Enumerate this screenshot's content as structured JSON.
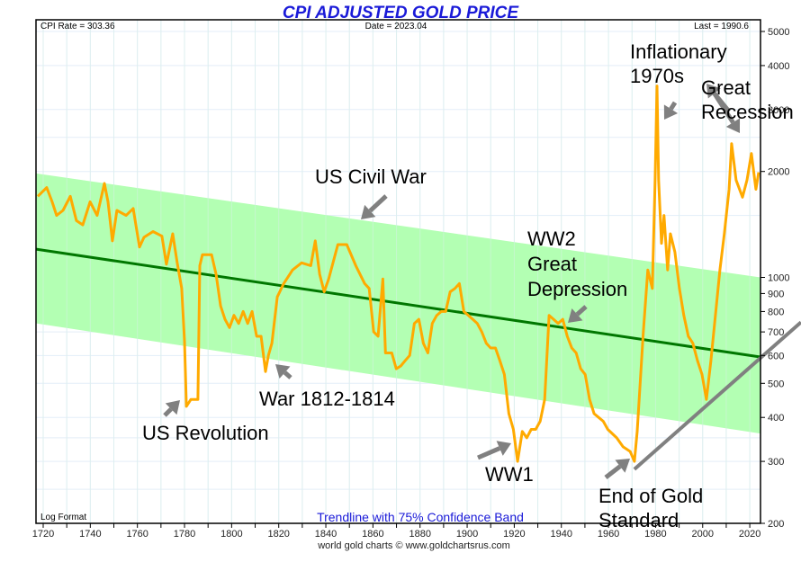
{
  "chart_data": {
    "type": "line",
    "title": "CPI ADJUSTED GOLD PRICE",
    "header": {
      "cpi_rate": "CPI Rate = 303.36",
      "date": "Date = 2023.04",
      "last": "Last = 1990.6"
    },
    "scale_label": "Log Format",
    "band_label": "Trendline with 75% Confidence Band",
    "credit": "world gold charts © www.goldchartsrus.com",
    "xlabel": "",
    "ylabel": "",
    "xlim": [
      1717,
      2024.5
    ],
    "ylim": [
      200,
      5600
    ],
    "yscale": "log",
    "grid": true,
    "x_ticks": [
      "1720",
      "1740",
      "1760",
      "1780",
      "1800",
      "1820",
      "1840",
      "1860",
      "1880",
      "1900",
      "1920",
      "1940",
      "1960",
      "1980",
      "2000",
      "2020"
    ],
    "y_ticks": [
      "200",
      "300",
      "400",
      "500",
      "600",
      "700",
      "800",
      "900",
      "1000",
      "2000",
      "3000",
      "4000",
      "5000"
    ],
    "colors": {
      "price": "#ffaa00",
      "trend": "#007700",
      "band": "#b3ffb3",
      "support": "#808080",
      "arrow": "#808080",
      "title": "#1a1ad8",
      "grid": "#e3eef8"
    },
    "series": [
      {
        "name": "CPI adjusted gold price",
        "points": [
          [
            1717.7,
            1700
          ],
          [
            1721.5,
            1800
          ],
          [
            1723.8,
            1640
          ],
          [
            1725.7,
            1500
          ],
          [
            1728.4,
            1550
          ],
          [
            1731.5,
            1700
          ],
          [
            1734.1,
            1450
          ],
          [
            1736.8,
            1410
          ],
          [
            1739.9,
            1640
          ],
          [
            1742.9,
            1500
          ],
          [
            1746.0,
            1850
          ],
          [
            1747.5,
            1640
          ],
          [
            1749.4,
            1270
          ],
          [
            1751.3,
            1550
          ],
          [
            1755.2,
            1500
          ],
          [
            1758.2,
            1570
          ],
          [
            1760.9,
            1220
          ],
          [
            1762.8,
            1300
          ],
          [
            1766.6,
            1350
          ],
          [
            1770.4,
            1310
          ],
          [
            1772.3,
            1090
          ],
          [
            1775.0,
            1330
          ],
          [
            1776.9,
            1100
          ],
          [
            1778.8,
            930
          ],
          [
            1780.0,
            660
          ],
          [
            1780.8,
            430
          ],
          [
            1782.7,
            450
          ],
          [
            1785.7,
            450
          ],
          [
            1786.5,
            1080
          ],
          [
            1787.6,
            1160
          ],
          [
            1791.5,
            1160
          ],
          [
            1793.4,
            1020
          ],
          [
            1795.3,
            830
          ],
          [
            1797.2,
            760
          ],
          [
            1799.1,
            720
          ],
          [
            1801.0,
            780
          ],
          [
            1803.0,
            740
          ],
          [
            1804.9,
            800
          ],
          [
            1806.8,
            740
          ],
          [
            1808.7,
            800
          ],
          [
            1810.6,
            680
          ],
          [
            1812.5,
            680
          ],
          [
            1814.4,
            540
          ],
          [
            1815.6,
            600
          ],
          [
            1817.1,
            650
          ],
          [
            1819.4,
            880
          ],
          [
            1822.1,
            960
          ],
          [
            1825.9,
            1050
          ],
          [
            1829.7,
            1100
          ],
          [
            1833.6,
            1080
          ],
          [
            1835.5,
            1270
          ],
          [
            1837.4,
            1020
          ],
          [
            1839.3,
            910
          ],
          [
            1841.2,
            990
          ],
          [
            1845.1,
            1240
          ],
          [
            1848.9,
            1240
          ],
          [
            1852.7,
            1080
          ],
          [
            1856.5,
            960
          ],
          [
            1858.4,
            930
          ],
          [
            1860.3,
            700
          ],
          [
            1862.2,
            680
          ],
          [
            1864.2,
            990
          ],
          [
            1865.3,
            610
          ],
          [
            1868.0,
            610
          ],
          [
            1869.9,
            550
          ],
          [
            1871.8,
            560
          ],
          [
            1873.7,
            580
          ],
          [
            1875.6,
            600
          ],
          [
            1877.6,
            740
          ],
          [
            1879.5,
            760
          ],
          [
            1881.4,
            650
          ],
          [
            1883.3,
            610
          ],
          [
            1885.2,
            740
          ],
          [
            1887.1,
            780
          ],
          [
            1889.0,
            800
          ],
          [
            1890.9,
            800
          ],
          [
            1892.8,
            910
          ],
          [
            1894.8,
            930
          ],
          [
            1896.7,
            960
          ],
          [
            1898.6,
            800
          ],
          [
            1900.5,
            780
          ],
          [
            1902.4,
            760
          ],
          [
            1904.3,
            740
          ],
          [
            1906.2,
            700
          ],
          [
            1908.1,
            650
          ],
          [
            1910.0,
            630
          ],
          [
            1912.0,
            630
          ],
          [
            1913.9,
            580
          ],
          [
            1915.8,
            530
          ],
          [
            1917.7,
            410
          ],
          [
            1919.6,
            370
          ],
          [
            1921.4,
            300
          ],
          [
            1923.4,
            365
          ],
          [
            1925.3,
            350
          ],
          [
            1927.2,
            370
          ],
          [
            1929.1,
            370
          ],
          [
            1931.0,
            390
          ],
          [
            1932.9,
            450
          ],
          [
            1934.8,
            780
          ],
          [
            1936.7,
            760
          ],
          [
            1938.6,
            740
          ],
          [
            1940.6,
            760
          ],
          [
            1942.5,
            680
          ],
          [
            1944.4,
            630
          ],
          [
            1946.3,
            610
          ],
          [
            1948.2,
            550
          ],
          [
            1950.1,
            530
          ],
          [
            1952.0,
            450
          ],
          [
            1953.9,
            410
          ],
          [
            1955.8,
            400
          ],
          [
            1957.8,
            390
          ],
          [
            1959.7,
            370
          ],
          [
            1963.5,
            350
          ],
          [
            1966.2,
            330
          ],
          [
            1969.2,
            320
          ],
          [
            1971.0,
            300
          ],
          [
            1972.2,
            365
          ],
          [
            1973.7,
            530
          ],
          [
            1974.8,
            700
          ],
          [
            1976.7,
            1050
          ],
          [
            1978.6,
            930
          ],
          [
            1979.8,
            1890
          ],
          [
            1980.6,
            3500
          ],
          [
            1981.3,
            1890
          ],
          [
            1982.5,
            1250
          ],
          [
            1983.6,
            1500
          ],
          [
            1985.1,
            1050
          ],
          [
            1986.3,
            1330
          ],
          [
            1988.2,
            1180
          ],
          [
            1990.1,
            930
          ],
          [
            1992.0,
            780
          ],
          [
            1993.9,
            680
          ],
          [
            1995.8,
            650
          ],
          [
            1997.8,
            580
          ],
          [
            1999.7,
            530
          ],
          [
            2001.6,
            450
          ],
          [
            2003.5,
            580
          ],
          [
            2005.4,
            780
          ],
          [
            2007.3,
            1050
          ],
          [
            2009.2,
            1330
          ],
          [
            2011.2,
            1780
          ],
          [
            2012.3,
            2400
          ],
          [
            2014.2,
            1890
          ],
          [
            2016.9,
            1690
          ],
          [
            2018.8,
            1890
          ],
          [
            2020.7,
            2250
          ],
          [
            2022.6,
            1780
          ],
          [
            2023.8,
            1990
          ]
        ]
      },
      {
        "name": "Trendline",
        "points": [
          [
            1717,
            1203
          ],
          [
            2024.5,
            594
          ]
        ]
      },
      {
        "name": "75% confidence band upper",
        "points": [
          [
            1717,
            1975
          ],
          [
            2024.5,
            1000
          ]
        ]
      },
      {
        "name": "75% confidence band lower",
        "points": [
          [
            1717,
            740
          ],
          [
            2024.5,
            360
          ]
        ]
      },
      {
        "name": "Support line",
        "points": [
          [
            1971,
            285
          ],
          [
            2024.5,
            590
          ]
        ]
      }
    ],
    "annotations": [
      {
        "id": "us-revolution",
        "lines": [
          "US Revolution"
        ]
      },
      {
        "id": "war-1812",
        "lines": [
          "War 1812-1814"
        ]
      },
      {
        "id": "us-civil-war",
        "lines": [
          "US Civil War"
        ]
      },
      {
        "id": "ww1",
        "lines": [
          "WW1"
        ]
      },
      {
        "id": "ww2",
        "lines": [
          "WW2",
          "Great",
          "Depression"
        ]
      },
      {
        "id": "end-gold-standard",
        "lines": [
          "End of Gold",
          "Standard"
        ]
      },
      {
        "id": "inflationary-1970s",
        "lines": [
          "Inflationary",
          "1970s"
        ]
      },
      {
        "id": "great-recession",
        "lines": [
          "Great",
          "Recession"
        ]
      }
    ]
  }
}
